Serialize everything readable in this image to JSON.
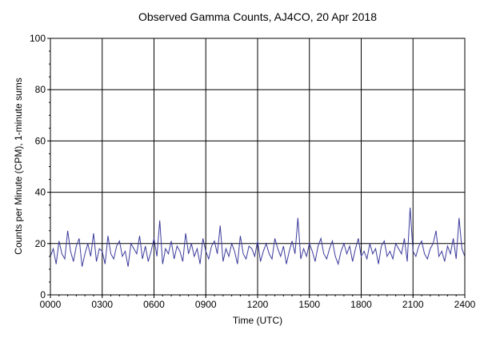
{
  "chart_data": {
    "type": "line",
    "title": "Observed Gamma Counts, AJ4CO, 20 Apr 2018",
    "xlabel": "Time (UTC)",
    "ylabel": "Counts per Minute (CPM), 1-minute sums",
    "xlim": [
      0,
      1440
    ],
    "ylim": [
      0,
      100
    ],
    "x_ticks": [
      {
        "value": 0,
        "label": "0000"
      },
      {
        "value": 180,
        "label": "0300"
      },
      {
        "value": 360,
        "label": "0600"
      },
      {
        "value": 540,
        "label": "0900"
      },
      {
        "value": 720,
        "label": "1200"
      },
      {
        "value": 900,
        "label": "1500"
      },
      {
        "value": 1080,
        "label": "1800"
      },
      {
        "value": 1260,
        "label": "2100"
      },
      {
        "value": 1440,
        "label": "2400"
      }
    ],
    "y_ticks": [
      {
        "value": 0,
        "label": "0"
      },
      {
        "value": 20,
        "label": "20"
      },
      {
        "value": 40,
        "label": "40"
      },
      {
        "value": 60,
        "label": "60"
      },
      {
        "value": 80,
        "label": "80"
      },
      {
        "value": 100,
        "label": "100"
      }
    ],
    "grid": true,
    "series": [
      {
        "color": "#3b3b9c",
        "sampling": "1-minute sums, approximate reconstruction",
        "x": [
          0,
          10,
          20,
          30,
          40,
          50,
          60,
          70,
          80,
          90,
          100,
          110,
          120,
          130,
          140,
          150,
          160,
          170,
          180,
          190,
          200,
          210,
          220,
          230,
          240,
          250,
          260,
          270,
          280,
          290,
          300,
          310,
          320,
          330,
          340,
          350,
          360,
          370,
          380,
          390,
          400,
          410,
          420,
          430,
          440,
          450,
          460,
          470,
          480,
          490,
          500,
          510,
          520,
          530,
          540,
          550,
          560,
          570,
          580,
          590,
          600,
          610,
          620,
          630,
          640,
          650,
          660,
          670,
          680,
          690,
          700,
          710,
          720,
          730,
          740,
          750,
          760,
          770,
          780,
          790,
          800,
          810,
          820,
          830,
          840,
          850,
          860,
          870,
          880,
          890,
          900,
          910,
          920,
          930,
          940,
          950,
          960,
          970,
          980,
          990,
          1000,
          1010,
          1020,
          1030,
          1040,
          1050,
          1060,
          1070,
          1080,
          1090,
          1100,
          1110,
          1120,
          1130,
          1140,
          1150,
          1160,
          1170,
          1180,
          1190,
          1200,
          1210,
          1220,
          1230,
          1240,
          1250,
          1260,
          1270,
          1280,
          1290,
          1300,
          1310,
          1320,
          1330,
          1340,
          1350,
          1360,
          1370,
          1380,
          1390,
          1400,
          1410,
          1420,
          1430,
          1440
        ],
        "y": [
          15,
          18,
          12,
          21,
          16,
          14,
          25,
          17,
          13,
          19,
          22,
          11,
          16,
          20,
          15,
          24,
          13,
          18,
          17,
          12,
          23,
          16,
          14,
          19,
          21,
          15,
          17,
          11,
          20,
          18,
          16,
          23,
          14,
          19,
          13,
          17,
          22,
          15,
          29,
          12,
          18,
          16,
          21,
          14,
          19,
          17,
          13,
          24,
          16,
          20,
          15,
          18,
          12,
          22,
          17,
          14,
          19,
          21,
          16,
          27,
          13,
          18,
          15,
          20,
          17,
          12,
          23,
          16,
          14,
          19,
          18,
          15,
          21,
          13,
          17,
          20,
          16,
          14,
          22,
          18,
          15,
          19,
          12,
          17,
          21,
          16,
          30,
          14,
          18,
          15,
          20,
          17,
          13,
          19,
          22,
          16,
          14,
          18,
          21,
          15,
          12,
          17,
          20,
          16,
          19,
          13,
          18,
          22,
          15,
          17,
          14,
          20,
          16,
          18,
          12,
          19,
          21,
          15,
          17,
          14,
          20,
          18,
          16,
          22,
          13,
          34,
          17,
          15,
          19,
          21,
          16,
          14,
          18,
          20,
          25,
          15,
          17,
          13,
          19,
          16,
          22,
          14,
          30,
          18,
          15
        ]
      }
    ]
  }
}
